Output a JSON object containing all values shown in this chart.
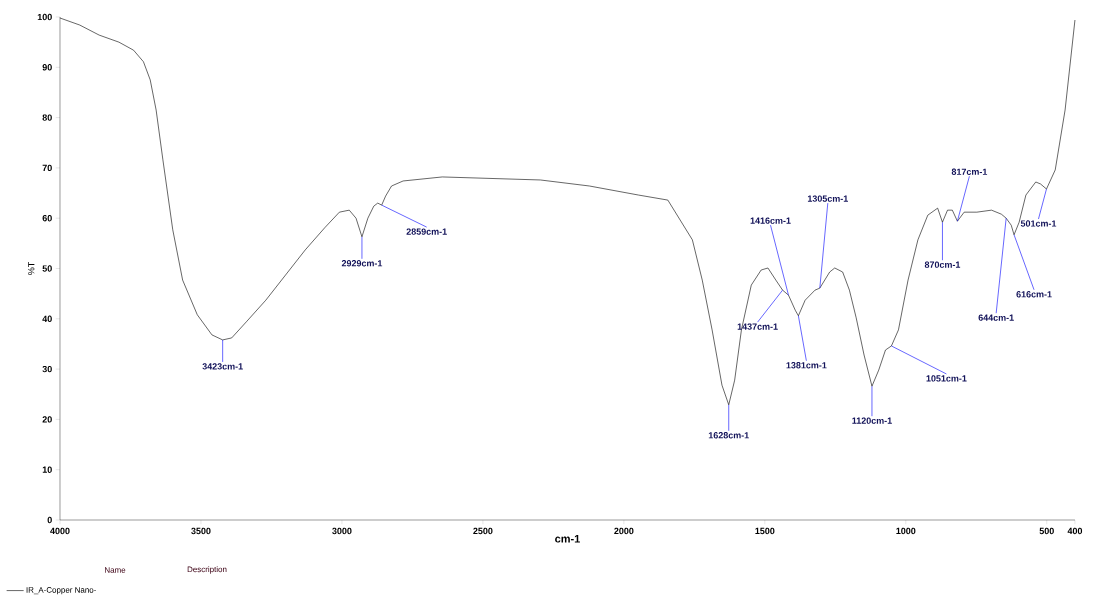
{
  "chart_data": {
    "type": "line",
    "xlabel": "cm-1",
    "ylabel": "%T",
    "legend_title": "Name",
    "legend": "bottom left",
    "xlim": [
      4000,
      400
    ],
    "ylim": [
      0,
      100
    ],
    "xticks": [
      4000,
      3500,
      3000,
      2500,
      2000,
      1500,
      1000,
      500,
      400
    ],
    "yticks": [
      0,
      10,
      20,
      30,
      40,
      50,
      60,
      70,
      80,
      90,
      100
    ],
    "series": [
      {
        "name": "IR_A-Copper Nano-",
        "color": "#000000",
        "x": [
          4000,
          3930,
          3861,
          3791,
          3739,
          3704,
          3680,
          3659,
          3635,
          3600,
          3565,
          3513,
          3461,
          3423,
          3391,
          3339,
          3270,
          3200,
          3130,
          3061,
          3009,
          2974,
          2950,
          2929,
          2908,
          2887,
          2873,
          2859,
          2845,
          2824,
          2783,
          2644,
          2296,
          2122,
          1948,
          1844,
          1757,
          1722,
          1687,
          1652,
          1628,
          1607,
          1583,
          1548,
          1513,
          1489,
          1461,
          1437,
          1416,
          1392,
          1381,
          1357,
          1322,
          1305,
          1270,
          1252,
          1224,
          1200,
          1176,
          1148,
          1120,
          1096,
          1072,
          1051,
          1026,
          992,
          957,
          922,
          887,
          870,
          852,
          835,
          817,
          793,
          748,
          696,
          661,
          644,
          626,
          616,
          598,
          574,
          539,
          522,
          501,
          470,
          435,
          400
        ],
        "values": [
          99.8,
          98.4,
          96.4,
          95.0,
          93.4,
          91.1,
          87.5,
          81.5,
          71.6,
          57.7,
          47.7,
          40.8,
          36.8,
          35.8,
          36.2,
          39.4,
          43.7,
          48.7,
          53.7,
          58.1,
          61.2,
          61.6,
          60.0,
          56.3,
          60.0,
          62.4,
          63.0,
          62.6,
          64.4,
          66.4,
          67.4,
          68.2,
          67.6,
          66.4,
          64.6,
          63.6,
          55.7,
          47.7,
          37.8,
          26.8,
          22.9,
          27.8,
          37.8,
          46.7,
          49.7,
          50.1,
          47.7,
          45.7,
          44.7,
          41.7,
          40.6,
          43.7,
          45.7,
          46.1,
          49.3,
          50.1,
          49.3,
          45.7,
          40.2,
          32.8,
          26.6,
          29.8,
          33.8,
          34.6,
          37.8,
          47.7,
          55.7,
          60.6,
          62.0,
          59.2,
          61.6,
          61.6,
          59.4,
          61.2,
          61.2,
          61.6,
          60.8,
          60.0,
          58.6,
          56.7,
          59.2,
          64.6,
          67.2,
          66.8,
          65.8,
          69.6,
          81.5,
          99.4
        ]
      }
    ],
    "annotations": [
      "Description",
      {
        "text": "3423cm-1",
        "x": 3423,
        "y": 35.8
      },
      {
        "text": "2929cm-1",
        "x": 2929,
        "y": 56.3
      },
      {
        "text": "2859cm-1",
        "x": 2859,
        "y": 62.6
      },
      {
        "text": "1628cm-1",
        "x": 1628,
        "y": 22.9
      },
      {
        "text": "1437cm-1",
        "x": 1437,
        "y": 45.7
      },
      {
        "text": "1416cm-1",
        "x": 1416,
        "y": 44.7
      },
      {
        "text": "1381cm-1",
        "x": 1381,
        "y": 40.6
      },
      {
        "text": "1305cm-1",
        "x": 1305,
        "y": 46.1
      },
      {
        "text": "1120cm-1",
        "x": 1120,
        "y": 26.6
      },
      {
        "text": "1051cm-1",
        "x": 1051,
        "y": 34.6
      },
      {
        "text": "870cm-1",
        "x": 870,
        "y": 59.2
      },
      {
        "text": "817cm-1",
        "x": 817,
        "y": 59.4
      },
      {
        "text": "644cm-1",
        "x": 644,
        "y": 60.0
      },
      {
        "text": "616cm-1",
        "x": 616,
        "y": 56.7
      },
      {
        "text": "501cm-1",
        "x": 501,
        "y": 65.8
      }
    ]
  }
}
